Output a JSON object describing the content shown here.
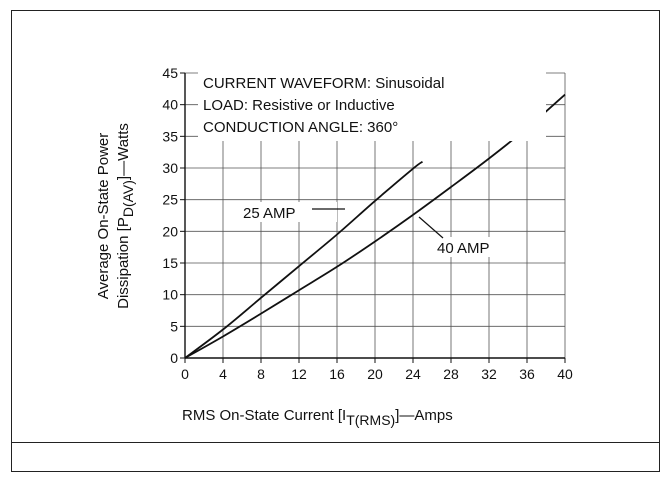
{
  "chart_data": {
    "type": "line",
    "xlabel": "RMS On-State Current [I",
    "xlabel_sub": "T(RMS)",
    "xlabel_tail": "]—Amps",
    "ylabel_line1": "Average On-State Power",
    "ylabel_line2": "Dissipation [P",
    "ylabel_sub": "D(AV)",
    "ylabel_tail": "]—Watts",
    "xlim": [
      0,
      40
    ],
    "ylim": [
      0,
      45
    ],
    "x_ticks": [
      "0",
      "4",
      "8",
      "12",
      "16",
      "20",
      "24",
      "28",
      "32",
      "36",
      "40"
    ],
    "y_ticks": [
      "0",
      "5",
      "10",
      "15",
      "20",
      "25",
      "30",
      "35",
      "40",
      "45"
    ],
    "grid": true,
    "conditions": [
      "CURRENT WAVEFORM: Sinusoidal",
      "LOAD: Resistive or Inductive",
      "CONDUCTION ANGLE: 360°"
    ],
    "series": [
      {
        "name": "25 AMP",
        "x": [
          0,
          4,
          8,
          12,
          16,
          20,
          24,
          25
        ],
        "y": [
          0,
          4.5,
          9.5,
          14.5,
          19.5,
          24.8,
          29.9,
          31
        ]
      },
      {
        "name": "40 AMP",
        "x": [
          0,
          4,
          8,
          12,
          16,
          20,
          24,
          28,
          32,
          36,
          40
        ],
        "y": [
          0,
          3.4,
          7,
          10.7,
          14.4,
          18.4,
          22.6,
          27,
          31.5,
          36.3,
          41.6
        ]
      }
    ]
  }
}
